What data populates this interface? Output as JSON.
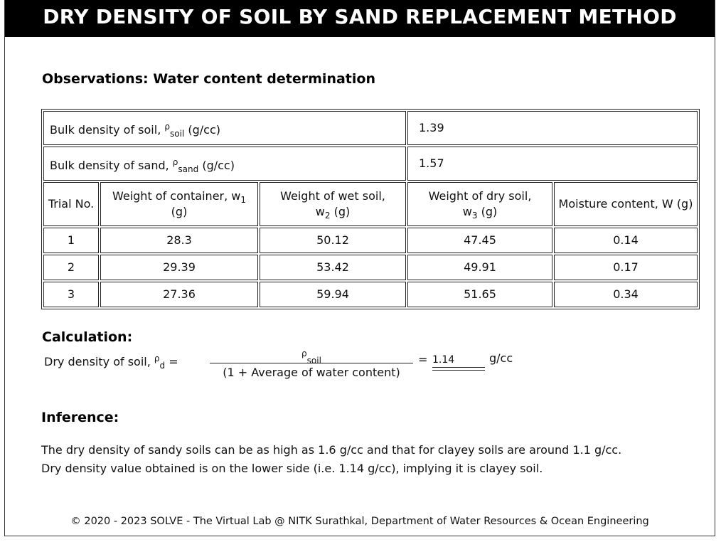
{
  "title": "DRY DENSITY OF SOIL BY SAND REPLACEMENT METHOD",
  "observations": {
    "heading": "Observations: Water content determination",
    "bulk_soil": {
      "label": "Bulk density of soil,",
      "symbol": "ρ",
      "sub": "soil",
      "unit": "(g/cc)",
      "value": "1.39"
    },
    "bulk_sand": {
      "label": "Bulk density of sand,",
      "symbol": "ρ",
      "sub": "sand",
      "unit": "(g/cc)",
      "value": "1.57"
    },
    "headers": {
      "trial": "Trial No.",
      "w1_text": "Weight of container, w",
      "w1_sub": "1",
      "w1_unit": "(g)",
      "w2_text": "Weight of wet soil,",
      "w2_sym": "w",
      "w2_sub": "2",
      "w2_unit": "(g)",
      "w3_text": "Weight of dry soil,",
      "w3_sym": "w",
      "w3_sub": "3",
      "w3_unit": "(g)",
      "moisture": "Moisture content, W (g)"
    },
    "rows": [
      {
        "trial": "1",
        "w1": "28.3",
        "w2": "50.12",
        "w3": "47.45",
        "w": "0.14"
      },
      {
        "trial": "2",
        "w1": "29.39",
        "w2": "53.42",
        "w3": "49.91",
        "w": "0.17"
      },
      {
        "trial": "3",
        "w1": "27.36",
        "w2": "59.94",
        "w3": "51.65",
        "w": "0.34"
      }
    ]
  },
  "calculation": {
    "heading": "Calculation:",
    "label": "Dry density of soil,",
    "symbol": "ρ",
    "sub": "d",
    "eq": "=",
    "numerator_symbol": "ρ",
    "numerator_sub": "soil",
    "denominator": "(1 + Average of water content)",
    "result_eq": "=",
    "result": "1.14",
    "unit": "g/cc"
  },
  "inference": {
    "heading": "Inference:",
    "line1": "The dry density of sandy soils can be as high as 1.6 g/cc and that for clayey soils are around 1.1 g/cc.",
    "line2": "Dry density value obtained is on the lower side (i.e. 1.14 g/cc), implying it is clayey soil."
  },
  "footer": "© 2020 - 2023 SOLVE - The Virtual Lab @ NITK Surathkal, Department of Water Resources & Ocean Engineering"
}
